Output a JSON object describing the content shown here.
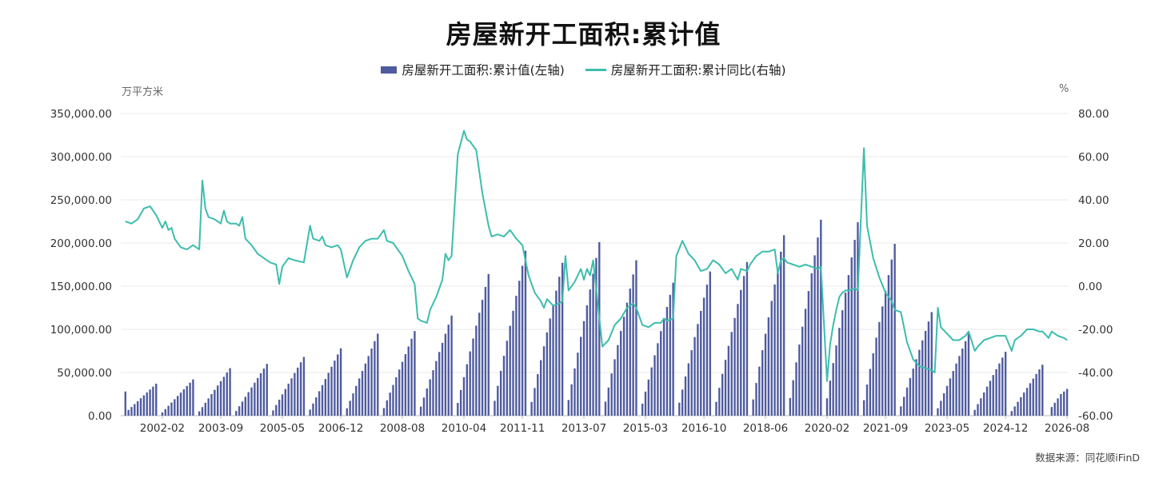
{
  "title": "房屋新开工面积:累计值",
  "legend": {
    "bar_label": "房屋新开工面积:累计值(左轴)",
    "line_label": "房屋新开工面积:累计同比(右轴)"
  },
  "units": {
    "left": "万平方米",
    "right": "%"
  },
  "source": "数据来源：同花顺iFinD",
  "colors": {
    "bars": "#4f5b9e",
    "line": "#3dbdac",
    "grid": "#e8e8e8",
    "axis_text": "#333333"
  },
  "chart_data": {
    "type": "bar+line",
    "title": "房屋新开工面积:累计值",
    "x_range": [
      "2001-01",
      "2026-08"
    ],
    "x_tick_labels": [
      "2002-02",
      "2003-09",
      "2005-05",
      "2006-12",
      "2008-08",
      "2010-04",
      "2011-11",
      "2013-07",
      "2015-03",
      "2016-10",
      "2018-06",
      "2020-02",
      "2021-09",
      "2023-05",
      "2024-12",
      "2026-08"
    ],
    "left_axis": {
      "unit": "万平方米",
      "ylim": [
        0,
        350000
      ],
      "tick_labels": [
        "0.00",
        "50,000.00",
        "100,000.00",
        "150,000.00",
        "200,000.00",
        "250,000.00",
        "300,000.00",
        "350,000.00"
      ]
    },
    "right_axis": {
      "unit": "%",
      "ylim": [
        -60,
        80
      ],
      "tick_labels": [
        "-60.00",
        "-40.00",
        "-20.00",
        "0.00",
        "20.00",
        "40.00",
        "60.00",
        "80.00"
      ]
    },
    "grid": true,
    "legend_position": "top-center",
    "bar_series": {
      "name": "房屋新开工面积:累计值(左轴)",
      "annual_totals": {
        "2001": 37000,
        "2002": 42000,
        "2003": 55000,
        "2004": 60000,
        "2005": 68000,
        "2006": 78000,
        "2007": 95000,
        "2008": 98000,
        "2009": 116000,
        "2010": 164000,
        "2011": 191000,
        "2012": 177000,
        "2013": 201000,
        "2014": 180000,
        "2015": 154000,
        "2016": 167000,
        "2017": 178000,
        "2018": 209000,
        "2019": 227000,
        "2020": 224000,
        "2021": 199000,
        "2022": 120000,
        "2023": 95000,
        "2024": 74000,
        "2025": 59000
      },
      "last_points": [
        {
          "date": "2026-03",
          "value": 10000
        },
        {
          "date": "2026-04",
          "value": 15000
        },
        {
          "date": "2026-05",
          "value": 20000
        },
        {
          "date": "2026-06",
          "value": 25000
        },
        {
          "date": "2026-07",
          "value": 28000
        },
        {
          "date": "2026-08",
          "value": 31000
        }
      ],
      "first_point": {
        "date": "2001-02",
        "value": 28000
      }
    },
    "line_series": {
      "name": "房屋新开工面积:累计同比(右轴)",
      "points": [
        [
          "2001-02",
          30
        ],
        [
          "2001-04",
          29
        ],
        [
          "2001-06",
          31
        ],
        [
          "2001-08",
          36
        ],
        [
          "2001-10",
          37
        ],
        [
          "2001-12",
          33
        ],
        [
          "2002-02",
          27
        ],
        [
          "2002-03",
          30
        ],
        [
          "2002-04",
          26
        ],
        [
          "2002-05",
          27
        ],
        [
          "2002-06",
          22
        ],
        [
          "2002-08",
          18
        ],
        [
          "2002-10",
          17
        ],
        [
          "2002-12",
          19
        ],
        [
          "2003-02",
          17
        ],
        [
          "2003-03",
          49
        ],
        [
          "2003-04",
          36
        ],
        [
          "2003-05",
          32
        ],
        [
          "2003-07",
          31
        ],
        [
          "2003-09",
          29
        ],
        [
          "2003-10",
          35
        ],
        [
          "2003-11",
          30
        ],
        [
          "2003-12",
          29
        ],
        [
          "2004-02",
          29
        ],
        [
          "2004-03",
          28
        ],
        [
          "2004-04",
          32
        ],
        [
          "2004-05",
          22
        ],
        [
          "2004-07",
          19
        ],
        [
          "2004-09",
          15
        ],
        [
          "2004-11",
          13
        ],
        [
          "2005-01",
          11
        ],
        [
          "2005-03",
          10
        ],
        [
          "2005-04",
          1
        ],
        [
          "2005-05",
          9
        ],
        [
          "2005-07",
          13
        ],
        [
          "2005-09",
          12
        ],
        [
          "2005-12",
          11
        ],
        [
          "2006-02",
          28
        ],
        [
          "2006-03",
          22
        ],
        [
          "2006-05",
          21
        ],
        [
          "2006-06",
          23
        ],
        [
          "2006-07",
          19
        ],
        [
          "2006-09",
          18
        ],
        [
          "2006-11",
          19
        ],
        [
          "2006-12",
          17
        ],
        [
          "2007-02",
          4
        ],
        [
          "2007-04",
          12
        ],
        [
          "2007-06",
          18
        ],
        [
          "2007-08",
          21
        ],
        [
          "2007-10",
          22
        ],
        [
          "2007-12",
          22
        ],
        [
          "2008-02",
          26
        ],
        [
          "2008-03",
          21
        ],
        [
          "2008-05",
          20
        ],
        [
          "2008-08",
          14
        ],
        [
          "2008-10",
          7
        ],
        [
          "2008-12",
          1
        ],
        [
          "2009-01",
          -15
        ],
        [
          "2009-02",
          -16
        ],
        [
          "2009-04",
          -17
        ],
        [
          "2009-05",
          -11
        ],
        [
          "2009-07",
          -5
        ],
        [
          "2009-09",
          3
        ],
        [
          "2009-10",
          15
        ],
        [
          "2009-11",
          12
        ],
        [
          "2009-12",
          14
        ],
        [
          "2010-02",
          61
        ],
        [
          "2010-04",
          72
        ],
        [
          "2010-05",
          68
        ],
        [
          "2010-06",
          67
        ],
        [
          "2010-08",
          63
        ],
        [
          "2010-10",
          43
        ],
        [
          "2010-12",
          28
        ],
        [
          "2011-01",
          23
        ],
        [
          "2011-03",
          24
        ],
        [
          "2011-05",
          23
        ],
        [
          "2011-07",
          26
        ],
        [
          "2011-09",
          22
        ],
        [
          "2011-11",
          19
        ],
        [
          "2012-01",
          5
        ],
        [
          "2012-03",
          -3
        ],
        [
          "2012-05",
          -7
        ],
        [
          "2012-06",
          -10
        ],
        [
          "2012-07",
          -6
        ],
        [
          "2012-09",
          -9
        ],
        [
          "2012-11",
          -8
        ],
        [
          "2012-12",
          -7
        ],
        [
          "2013-01",
          14
        ],
        [
          "2013-02",
          -2
        ],
        [
          "2013-04",
          2
        ],
        [
          "2013-06",
          8
        ],
        [
          "2013-07",
          3
        ],
        [
          "2013-08",
          8
        ],
        [
          "2013-09",
          5
        ],
        [
          "2013-10",
          12
        ],
        [
          "2014-01",
          -28
        ],
        [
          "2014-03",
          -25
        ],
        [
          "2014-05",
          -18
        ],
        [
          "2014-07",
          -15
        ],
        [
          "2014-09",
          -10
        ],
        [
          "2014-11",
          -8
        ],
        [
          "2014-12",
          -10
        ],
        [
          "2015-02",
          -18
        ],
        [
          "2015-04",
          -19
        ],
        [
          "2015-06",
          -17
        ],
        [
          "2015-08",
          -17
        ],
        [
          "2015-09",
          -15
        ],
        [
          "2015-10",
          -16
        ],
        [
          "2015-12",
          -15
        ],
        [
          "2016-01",
          14
        ],
        [
          "2016-03",
          21
        ],
        [
          "2016-05",
          15
        ],
        [
          "2016-07",
          12
        ],
        [
          "2016-09",
          7
        ],
        [
          "2016-11",
          8
        ],
        [
          "2017-01",
          12
        ],
        [
          "2017-03",
          10
        ],
        [
          "2017-05",
          6
        ],
        [
          "2017-07",
          8
        ],
        [
          "2017-09",
          3
        ],
        [
          "2017-10",
          8
        ],
        [
          "2017-12",
          7
        ],
        [
          "2018-01",
          10
        ],
        [
          "2018-03",
          14
        ],
        [
          "2018-05",
          16
        ],
        [
          "2018-07",
          16
        ],
        [
          "2018-09",
          17
        ],
        [
          "2018-10",
          6
        ],
        [
          "2018-11",
          12
        ],
        [
          "2018-12",
          13
        ],
        [
          "2019-01",
          11
        ],
        [
          "2019-03",
          10
        ],
        [
          "2019-05",
          9
        ],
        [
          "2019-07",
          10
        ],
        [
          "2019-09",
          9
        ],
        [
          "2019-11",
          8
        ],
        [
          "2019-12",
          9
        ],
        [
          "2020-02",
          -44
        ],
        [
          "2020-03",
          -27
        ],
        [
          "2020-04",
          -18
        ],
        [
          "2020-05",
          -11
        ],
        [
          "2020-06",
          -5
        ],
        [
          "2020-07",
          -3
        ],
        [
          "2020-08",
          -2
        ],
        [
          "2020-09",
          -2
        ],
        [
          "2020-11",
          -1
        ],
        [
          "2020-12",
          -2
        ],
        [
          "2021-02",
          64
        ],
        [
          "2021-03",
          28
        ],
        [
          "2021-05",
          13
        ],
        [
          "2021-07",
          4
        ],
        [
          "2021-09",
          -3
        ],
        [
          "2021-11",
          -7
        ],
        [
          "2021-12",
          -11
        ],
        [
          "2022-02",
          -12
        ],
        [
          "2022-04",
          -26
        ],
        [
          "2022-06",
          -34
        ],
        [
          "2022-08",
          -37
        ],
        [
          "2022-10",
          -38
        ],
        [
          "2022-12",
          -39
        ],
        [
          "2023-01",
          -40
        ],
        [
          "2023-02",
          -10
        ],
        [
          "2023-03",
          -19
        ],
        [
          "2023-05",
          -22
        ],
        [
          "2023-07",
          -25
        ],
        [
          "2023-09",
          -25
        ],
        [
          "2023-11",
          -23
        ],
        [
          "2023-12",
          -21
        ],
        [
          "2024-02",
          -30
        ],
        [
          "2024-03",
          -28
        ],
        [
          "2024-05",
          -25
        ],
        [
          "2024-07",
          -24
        ],
        [
          "2024-09",
          -23
        ],
        [
          "2024-11",
          -23
        ],
        [
          "2024-12",
          -23
        ],
        [
          "2025-02",
          -30
        ],
        [
          "2025-03",
          -25
        ],
        [
          "2025-05",
          -23
        ],
        [
          "2025-07",
          -20
        ],
        [
          "2025-09",
          -20
        ],
        [
          "2025-11",
          -21
        ],
        [
          "2025-12",
          -21
        ],
        [
          "2026-02",
          -24
        ],
        [
          "2026-03",
          -21
        ],
        [
          "2026-05",
          -23
        ],
        [
          "2026-07",
          -24
        ],
        [
          "2026-08",
          -25
        ]
      ]
    }
  }
}
